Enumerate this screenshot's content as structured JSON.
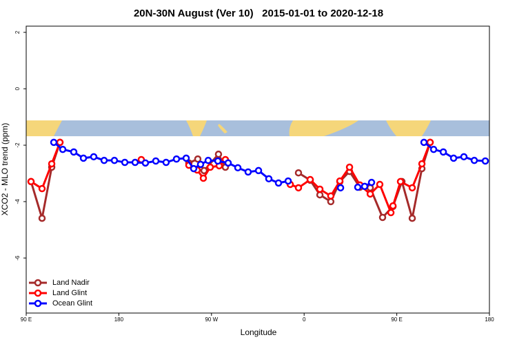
{
  "chart_data": {
    "type": "line",
    "title": "20N-30N August (Ver 10)   2015-01-01 to 2020-12-18",
    "x_label": "Longitude",
    "y_label": "XCO2 - MLO trend (ppm)",
    "xlim": [
      90,
      540
    ],
    "ylim": [
      -7.95,
      2.22
    ],
    "xticks": [
      {
        "value": 90,
        "label": "90 E"
      },
      {
        "value": 180,
        "label": "180"
      },
      {
        "value": 270,
        "label": "90 W"
      },
      {
        "value": 360,
        "label": "0"
      },
      {
        "value": 450,
        "label": "90 E"
      },
      {
        "value": 540,
        "label": "180"
      }
    ],
    "yticks": [
      -6,
      -4,
      -2,
      0,
      2
    ],
    "legend": "bottomleft",
    "series": [
      {
        "name": "Land Nadir",
        "color": "#a52a2a",
        "x": [
          94.7,
          105.4,
          114.8,
          122.8,
          null,
          248.0,
          256.7,
          262.8,
          276.8,
          283.5,
          null,
          354.5,
          365.9,
          375.3,
          385.9,
          394.7,
          404.1,
          414.1,
          424.2,
          436.2,
          446.3,
          455.0,
          465.0,
          474.4,
          482.4
        ],
        "values": [
          -3.29,
          -4.59,
          -2.78,
          -1.9,
          null,
          -2.63,
          -2.49,
          -2.9,
          -2.32,
          -2.78,
          null,
          -2.98,
          -3.24,
          -3.76,
          -4.0,
          -3.29,
          -2.93,
          -3.49,
          -3.51,
          -4.56,
          -4.17,
          -3.29,
          -4.59,
          -2.83,
          -1.9
        ]
      },
      {
        "name": "Land Glint",
        "color": "#ff0000",
        "x": [
          94.7,
          105.4,
          114.8,
          122.8,
          null,
          201.8,
          null,
          248.0,
          256.1,
          262.1,
          268.8,
          277.5,
          283.5,
          null,
          346.5,
          354.5,
          365.9,
          375.3,
          385.9,
          394.7,
          404.1,
          414.1,
          424.2,
          433.5,
          444.3,
          446.3,
          453.6,
          465.0,
          474.4,
          482.4
        ],
        "values": [
          -3.29,
          -3.54,
          -2.66,
          -1.9,
          null,
          -2.51,
          null,
          -2.71,
          -2.88,
          -3.17,
          -2.78,
          -2.73,
          -2.51,
          null,
          -3.39,
          -3.51,
          -3.22,
          -3.56,
          -3.8,
          -3.27,
          -2.78,
          -3.41,
          -3.73,
          -3.39,
          -4.39,
          -4.15,
          -3.29,
          -3.51,
          -2.66,
          -1.9
        ]
      },
      {
        "name": "Ocean Glint",
        "color": "#0000ff",
        "x": [
          116.8,
          125.5,
          136.2,
          145.6,
          155.6,
          165.7,
          175.7,
          185.8,
          195.8,
          205.8,
          215.9,
          225.9,
          236.0,
          245.4,
          252.7,
          259.4,
          266.8,
          276.2,
          286.2,
          295.6,
          305.6,
          315.7,
          325.7,
          335.1,
          344.5,
          null,
          395.4,
          null,
          412.1,
          418.8,
          425.5,
          null,
          476.4,
          485.8,
          495.2,
          505.2,
          515.2,
          525.3,
          536.0
        ],
        "values": [
          -1.9,
          -2.15,
          -2.24,
          -2.46,
          -2.41,
          -2.54,
          -2.54,
          -2.61,
          -2.61,
          -2.63,
          -2.56,
          -2.61,
          -2.49,
          -2.46,
          -2.83,
          -2.68,
          -2.54,
          -2.56,
          -2.63,
          -2.8,
          -2.95,
          -2.9,
          -3.19,
          -3.34,
          -3.27,
          null,
          -3.51,
          null,
          -3.49,
          -3.46,
          -3.32,
          null,
          -1.9,
          -2.15,
          -2.24,
          -2.46,
          -2.41,
          -2.54,
          -2.56
        ]
      }
    ]
  }
}
